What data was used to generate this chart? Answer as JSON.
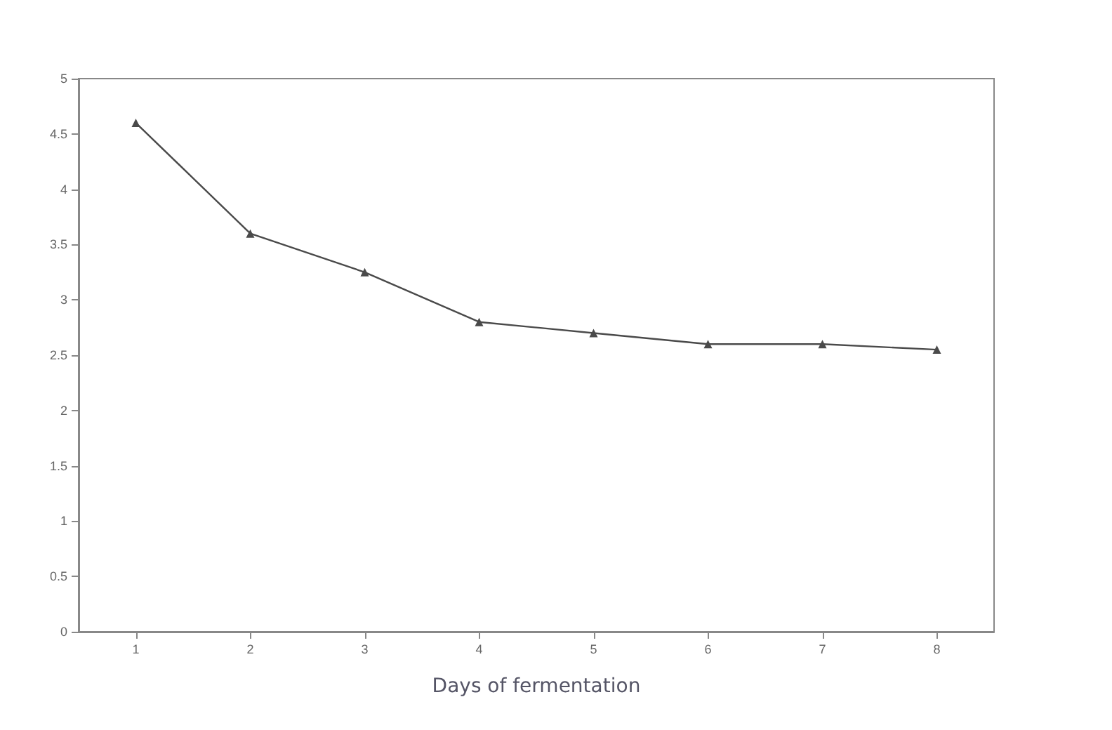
{
  "chart_data": {
    "type": "line",
    "xlabel": "Days of fermentation",
    "categories": [
      "1",
      "2",
      "3",
      "4",
      "5",
      "6",
      "7",
      "8"
    ],
    "series": [
      {
        "color": "#4a4a4a",
        "values": [
          4.6,
          3.6,
          3.25,
          2.8,
          2.7,
          2.6,
          2.6,
          2.55
        ]
      }
    ],
    "ylim": [
      0,
      5
    ],
    "yticks": [
      0,
      0.5,
      1,
      1.5,
      2,
      2.5,
      3,
      3.5,
      4,
      4.5,
      5
    ],
    "grid": false,
    "marker": "triangle",
    "line_style": "solid"
  }
}
